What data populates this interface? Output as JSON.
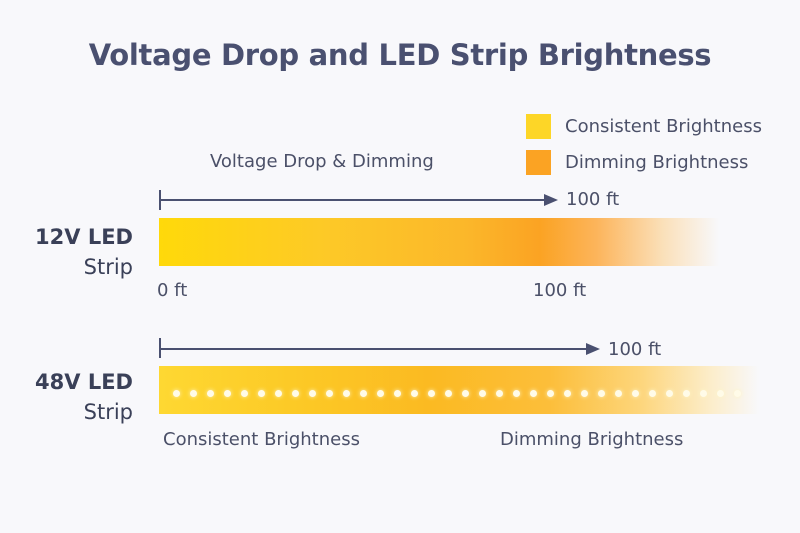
{
  "title": "Voltage Drop and LED Strip Brightness",
  "legend": [
    {
      "label": "Consistent Brightness",
      "color": "#fdd627"
    },
    {
      "label": "Dimming Brightness",
      "color": "#fba323"
    }
  ],
  "section_label": "Voltage Drop & Dimming",
  "strip_12v": {
    "label_line1": "12V LED",
    "label_line2": "Strip",
    "arrow_label": "100 ft",
    "start_label": "0 ft",
    "end_label": "100 ft"
  },
  "strip_48v": {
    "label_line1": "48V LED",
    "label_line2": "Strip",
    "arrow_label": "100 ft",
    "left_caption": "Consistent Brightness",
    "right_caption": "Dimming Brightness"
  }
}
